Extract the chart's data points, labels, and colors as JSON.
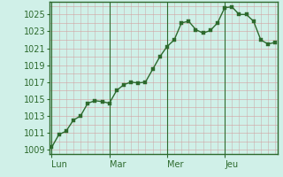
{
  "background_color": "#d0f0e8",
  "plot_bg_color": "#d0f0e8",
  "line_color": "#2d6a2d",
  "marker_color": "#2d6a2d",
  "grid_color_h": "#d4a0a0",
  "grid_color_v": "#c8b0b0",
  "axis_color": "#2d6a2d",
  "tick_label_color": "#2d6a2d",
  "day_labels": [
    "Lun",
    "Mar",
    "Mer",
    "Jeu"
  ],
  "day_positions": [
    0,
    8,
    16,
    24
  ],
  "xlim": [
    -0.3,
    31.3
  ],
  "ylim": [
    1008.5,
    1026.5
  ],
  "yticks": [
    1009,
    1011,
    1013,
    1015,
    1017,
    1019,
    1021,
    1023,
    1025
  ],
  "x": [
    0,
    1,
    2,
    3,
    4,
    5,
    6,
    7,
    8,
    9,
    10,
    11,
    12,
    13,
    14,
    15,
    16,
    17,
    18,
    19,
    20,
    21,
    22,
    23,
    24,
    25,
    26,
    27,
    28,
    29,
    30,
    31
  ],
  "y": [
    1009.3,
    1010.8,
    1011.2,
    1012.5,
    1013.0,
    1014.5,
    1014.8,
    1014.7,
    1014.5,
    1016.0,
    1016.7,
    1017.0,
    1016.9,
    1017.0,
    1018.5,
    1020.0,
    1021.2,
    1022.0,
    1024.0,
    1024.2,
    1023.2,
    1022.8,
    1023.1,
    1024.0,
    1025.8,
    1025.9,
    1025.0,
    1025.0,
    1024.2,
    1022.0,
    1021.5,
    1021.7
  ]
}
